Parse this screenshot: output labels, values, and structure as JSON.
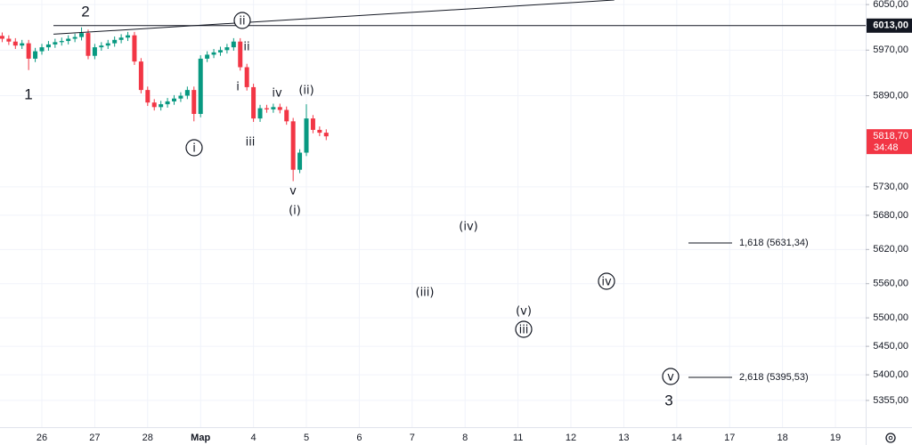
{
  "chart_data": {
    "type": "candlestick",
    "xlim": [
      -0.7912,
      15.572
    ],
    "ylim": [
      5308,
      6058
    ],
    "xticks": [
      {
        "value": 0,
        "label": "26"
      },
      {
        "value": 1,
        "label": "27"
      },
      {
        "value": 2,
        "label": "28"
      },
      {
        "value": 3,
        "label": "Мар"
      },
      {
        "value": 4,
        "label": "4"
      },
      {
        "value": 5,
        "label": "5"
      },
      {
        "value": 6,
        "label": "6"
      },
      {
        "value": 7,
        "label": "7"
      },
      {
        "value": 8,
        "label": "8"
      },
      {
        "value": 9,
        "label": "11"
      },
      {
        "value": 10,
        "label": "12"
      },
      {
        "value": 11,
        "label": "13"
      },
      {
        "value": 12,
        "label": "14"
      },
      {
        "value": 13,
        "label": "17"
      },
      {
        "value": 14,
        "label": "18"
      },
      {
        "value": 15,
        "label": "19"
      }
    ],
    "yticks": [
      {
        "value": 6050,
        "label": "6050,00"
      },
      {
        "value": 5970,
        "label": "5970,00"
      },
      {
        "value": 5890,
        "label": "5890,00"
      },
      {
        "value": 5730,
        "label": "5730,00"
      },
      {
        "value": 5680,
        "label": "5680,00"
      },
      {
        "value": 5620,
        "label": "5620,00"
      },
      {
        "value": 5560,
        "label": "5560,00"
      },
      {
        "value": 5500,
        "label": "5500,00"
      },
      {
        "value": 5450,
        "label": "5450,00"
      },
      {
        "value": 5400,
        "label": "5400,00"
      },
      {
        "value": 5355,
        "label": "5355,00"
      }
    ],
    "grid": true,
    "up_color": "#089981",
    "down_color": "#f23645",
    "x": [
      -0.75,
      -0.625,
      -0.5,
      -0.375,
      -0.25,
      -0.125,
      0,
      0.125,
      0.25,
      0.375,
      0.5,
      0.625,
      0.75,
      0.875,
      1,
      1.125,
      1.25,
      1.375,
      1.5,
      1.625,
      1.75,
      1.875,
      2,
      2.125,
      2.25,
      2.375,
      2.5,
      2.625,
      2.75,
      2.875,
      3,
      3.125,
      3.25,
      3.375,
      3.5,
      3.625,
      3.75,
      3.875,
      4,
      4.125,
      4.25,
      4.375,
      4.5,
      4.625,
      4.75,
      4.875,
      5,
      5.125,
      5.25,
      5.375
    ],
    "open": [
      5995,
      5990,
      5985,
      5978,
      5982,
      5955,
      5968,
      5975,
      5980,
      5984,
      5986,
      5990,
      5993,
      6000,
      5960,
      5975,
      5978,
      5982,
      5988,
      5992,
      5996,
      5950,
      5900,
      5878,
      5870,
      5875,
      5880,
      5885,
      5890,
      5900,
      5858,
      5955,
      5962,
      5966,
      5970,
      5975,
      5985,
      5940,
      5905,
      5850,
      5868,
      5866,
      5870,
      5865,
      5845,
      5760,
      5790,
      5850,
      5830,
      5825
    ],
    "high": [
      6001,
      5996,
      5991,
      5988,
      5988,
      5974,
      5981,
      5986,
      5990,
      5992,
      5996,
      5999,
      6010,
      6006,
      5981,
      5984,
      5988,
      5994,
      5998,
      6002,
      6002,
      5956,
      5906,
      5884,
      5881,
      5886,
      5891,
      5896,
      5906,
      5906,
      5961,
      5968,
      5972,
      5976,
      5981,
      5991,
      5991,
      5946,
      5911,
      5874,
      5874,
      5876,
      5876,
      5871,
      5851,
      5796,
      5875,
      5856,
      5836,
      5831
    ],
    "low": [
      5984,
      5979,
      5972,
      5972,
      5935,
      5949,
      5962,
      5969,
      5974,
      5978,
      5980,
      5984,
      5987,
      5954,
      5954,
      5969,
      5972,
      5976,
      5982,
      5986,
      5944,
      5894,
      5872,
      5864,
      5864,
      5869,
      5874,
      5879,
      5884,
      5845,
      5852,
      5949,
      5956,
      5960,
      5964,
      5969,
      5934,
      5899,
      5844,
      5844,
      5860,
      5860,
      5859,
      5839,
      5740,
      5754,
      5784,
      5824,
      5819,
      5812
    ],
    "close": [
      5990,
      5985,
      5978,
      5982,
      5955,
      5968,
      5975,
      5980,
      5984,
      5986,
      5990,
      5993,
      6000,
      5960,
      5975,
      5978,
      5982,
      5988,
      5992,
      5996,
      5950,
      5900,
      5878,
      5870,
      5875,
      5880,
      5885,
      5890,
      5900,
      5858,
      5955,
      5962,
      5966,
      5970,
      5975,
      5985,
      5940,
      5905,
      5850,
      5868,
      5866,
      5870,
      5865,
      5845,
      5760,
      5790,
      5850,
      5830,
      5825,
      5818.7
    ],
    "price_line": {
      "value": 6013,
      "label": "6013,00"
    },
    "last_price": {
      "value": 5818.7,
      "label": "5818,70",
      "countdown": "34:48"
    },
    "trend_line": {
      "x": [
        0.22,
        10.82
      ],
      "y": [
        5998,
        6058
      ]
    },
    "fib_levels": [
      {
        "value": 5631.34,
        "label": "1,618 (5631,34)"
      },
      {
        "value": 5395.53,
        "label": "2,618 (5395,53)"
      }
    ],
    "annotations": [
      {
        "text": "2",
        "circled": false
      },
      {
        "text": "1",
        "circled": false
      },
      {
        "text": "ii",
        "circled": true
      },
      {
        "text": "ii",
        "circled": false
      },
      {
        "text": "i",
        "circled": false
      },
      {
        "text": "iv",
        "circled": false
      },
      {
        "text": "(ii)",
        "circled": false
      },
      {
        "text": "i",
        "circled": true
      },
      {
        "text": "iii",
        "circled": false
      },
      {
        "text": "v",
        "circled": false
      },
      {
        "text": "(i)",
        "circled": false
      },
      {
        "text": "(iv)",
        "circled": false
      },
      {
        "text": "(iii)",
        "circled": false
      },
      {
        "text": "(v)",
        "circled": false
      },
      {
        "text": "iii",
        "circled": true
      },
      {
        "text": "iv",
        "circled": true
      },
      {
        "text": "v",
        "circled": true
      },
      {
        "text": "3",
        "circled": false
      }
    ]
  }
}
